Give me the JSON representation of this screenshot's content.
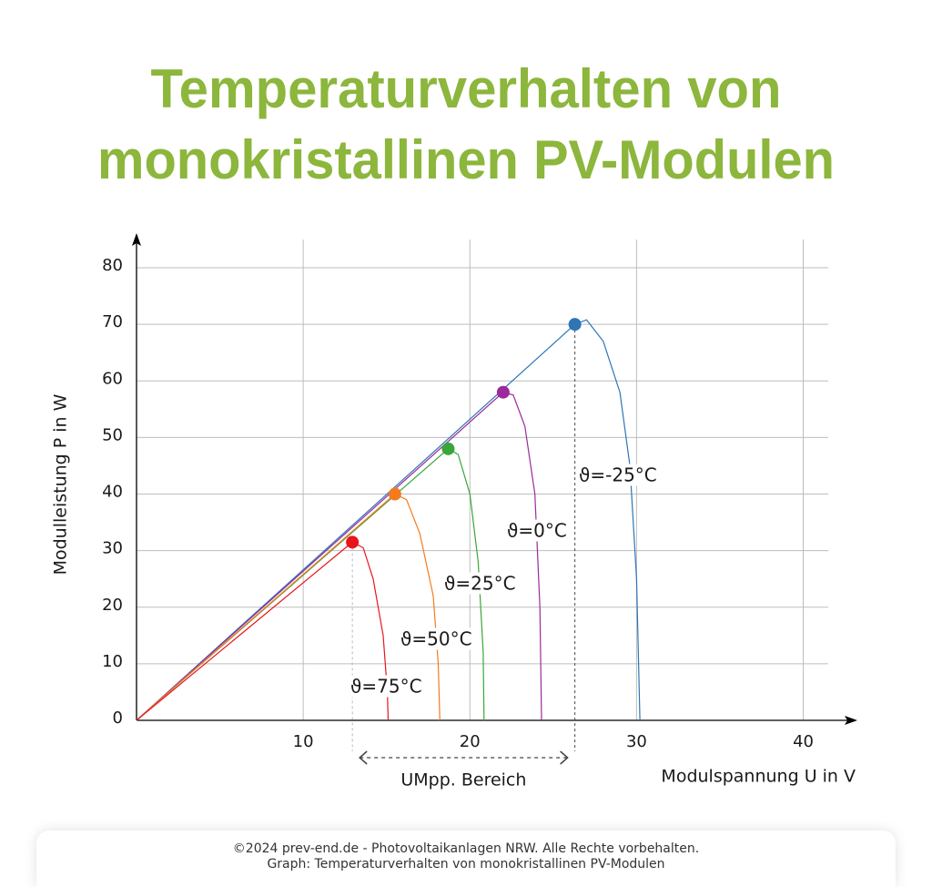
{
  "chart_data": {
    "type": "line",
    "title": [
      "Temperaturverhalten von",
      "monokristallinen PV-Modulen"
    ],
    "x_label": "Modulspannung U in V",
    "y_label": "Modulleistung P in W",
    "annotation": "UMpp. Bereich",
    "xlim": [
      0,
      41.5
    ],
    "xticks": [
      10,
      20,
      30,
      40
    ],
    "ylim": [
      0,
      85
    ],
    "yticks": [
      0,
      10,
      20,
      30,
      40,
      50,
      60,
      70,
      80
    ],
    "grid": true,
    "series": [
      {
        "name": "ϑ=-25°C",
        "color": "#2e75b6",
        "x": [
          0,
          26.3,
          27,
          28,
          29,
          29.6,
          30,
          30.2
        ],
        "values": [
          0,
          70,
          70.8,
          67,
          58,
          45,
          25,
          0
        ]
      },
      {
        "name": "ϑ=0°C",
        "color": "#9b2a9b",
        "x": [
          0,
          22,
          22.6,
          23.3,
          23.9,
          24.2,
          24.3
        ],
        "values": [
          0,
          58,
          57.5,
          52,
          40,
          20,
          0
        ]
      },
      {
        "name": "ϑ=25°C",
        "color": "#3aa63a",
        "x": [
          0,
          18.7,
          19.3,
          20,
          20.5,
          20.8,
          20.85
        ],
        "values": [
          0,
          48,
          47,
          40,
          28,
          12,
          0
        ]
      },
      {
        "name": "ϑ=50°C",
        "color": "#f47a20",
        "x": [
          0,
          15.5,
          16.2,
          17,
          17.8,
          18.1,
          18.2
        ],
        "values": [
          0,
          40,
          39,
          33,
          22,
          10,
          0
        ]
      },
      {
        "name": "ϑ=75°C",
        "color": "#e8151b",
        "x": [
          0,
          12.95,
          13.6,
          14.2,
          14.8,
          15.05,
          15.1
        ],
        "values": [
          0,
          31.5,
          30.5,
          25,
          15,
          5,
          0
        ]
      }
    ]
  },
  "footer": [
    "©2024 prev-end.de - Photovoltaikanlagen NRW. Alle Rechte vorbehalten.",
    "Graph: Temperaturverhalten von monokristallinen PV-Modulen"
  ]
}
